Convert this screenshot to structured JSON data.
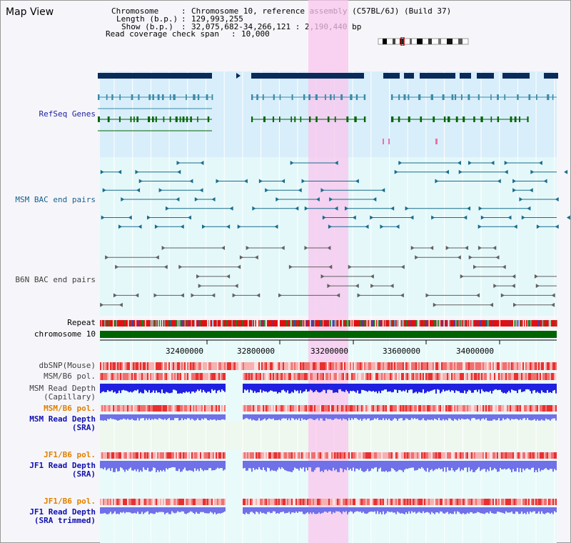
{
  "panel": {
    "title": "Map View"
  },
  "info": {
    "chromosome_key": "Chromosome",
    "chromosome_value": "Chromosome 10, reference assembly (C57BL/6J) (Build 37)",
    "length_key": "Length (b.p.)",
    "length_value": "129,993,255",
    "show_key": "Show (b.p.)",
    "show_value": "32,075,682-34,266,121 : 2,190,440 bp",
    "span_key": "Read coverage check span",
    "span_value": "10,000"
  },
  "tracks": {
    "refseq": "RefSeq Genes",
    "msm_bac": "MSM BAC end pairs",
    "b6n_bac": "B6N BAC end pairs",
    "repeat": "Repeat",
    "chromosome": "chromosome 10",
    "dbsnp": "dbSNP(Mouse)",
    "msm_pol": "MSM/B6 pol.",
    "msm_depth_cap_1": "MSM Read Depth",
    "msm_depth_cap_2": "(Capillary)",
    "msm_pol_sra": "MSM/B6 pol.",
    "msm_depth_sra_1": "MSM Read Depth",
    "msm_depth_sra_2": "(SRA)",
    "jf1_pol": "JF1/B6 pol.",
    "jf1_depth_1": "JF1 Read Depth",
    "jf1_depth_2": "(SRA)",
    "jf1_pol_trim": "JF1/B6 pol.",
    "jf1_depth_trim_1": "JF1 Read Depth",
    "jf1_depth_trim_2": "(SRA trimmed)"
  },
  "axis": {
    "ticks": [
      "32400000",
      "32800000",
      "33200000",
      "33600000",
      "34000000"
    ]
  },
  "colors": {
    "refseq_bg": "#d8eefa",
    "bac_bg": "#e4f8fa",
    "highlight": "#f9c6ee",
    "gene_dark": "#0a2a5a",
    "gene_teal": "#3a8aa8",
    "gene_green": "#006400",
    "bac_teal": "#1a6c8c",
    "bac_gray": "#606060",
    "chrom_bar": "#006400",
    "depth_blue": "#2020e0",
    "depth_light": "#7070e8"
  }
}
